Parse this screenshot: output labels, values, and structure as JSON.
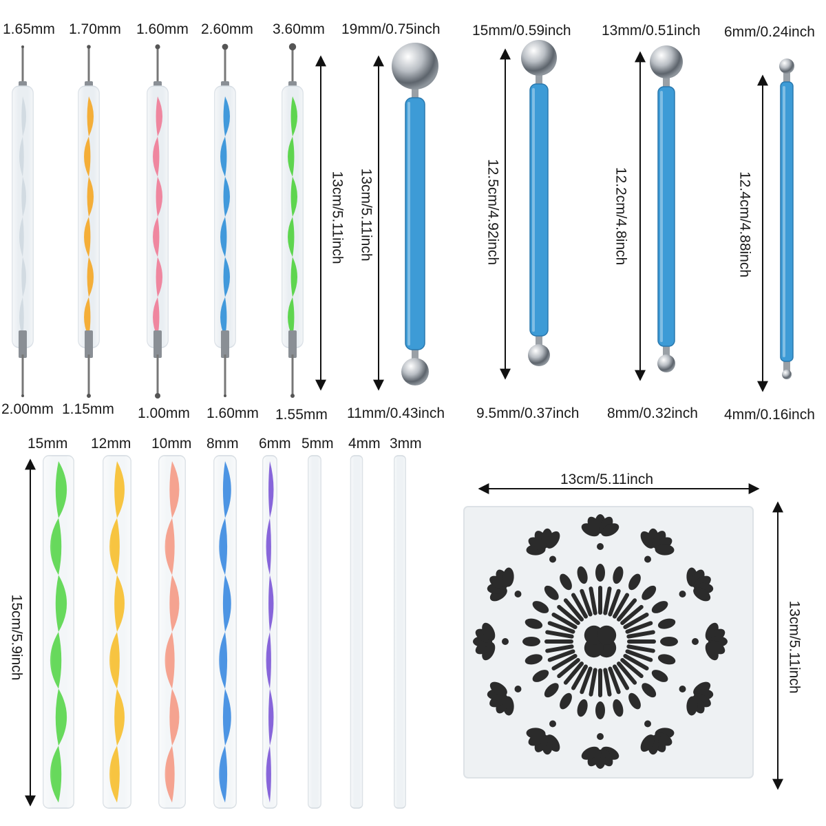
{
  "colors": {
    "clear": "#e9eef2",
    "orange": "#f5a623",
    "pink": "#f07a96",
    "blue": "#2f8fd8",
    "green": "#4fd13d",
    "handle_blue": "#3d9bd6",
    "rod_green": "#58d64a",
    "rod_yellow": "#f7bf2c",
    "rod_salmon": "#f59a84",
    "rod_blue": "#3a8ae0",
    "rod_purple": "#7b55d6",
    "stencil_pattern": "#2b2b2b"
  },
  "dotting_pens": {
    "top_tips": [
      "1.65mm",
      "1.70mm",
      "1.60mm",
      "2.60mm",
      "3.60mm"
    ],
    "bottom_tips": [
      "2.00mm",
      "1.15mm",
      "1.00mm",
      "1.60mm",
      "1.55mm"
    ],
    "length": "13cm/5.11inch"
  },
  "ball_tools": [
    {
      "top": "19mm/0.75inch",
      "length": "13cm/5.11inch",
      "bottom": "11mm/0.43inch"
    },
    {
      "top": "15mm/0.59inch",
      "length": "12.5cm/4.92inch",
      "bottom": "9.5mm/0.37inch"
    },
    {
      "top": "13mm/0.51inch",
      "length": "12.2cm/4.8inch",
      "bottom": "8mm/0.32inch"
    },
    {
      "top": "6mm/0.24inch",
      "length": "12.4cm/4.88inch",
      "bottom": "4mm/0.16inch"
    }
  ],
  "rods": {
    "diameters": [
      "15mm",
      "12mm",
      "10mm",
      "8mm",
      "6mm",
      "5mm",
      "4mm",
      "3mm"
    ],
    "length": "15cm/5.9inch"
  },
  "stencil": {
    "width": "13cm/5.11inch",
    "height": "13cm/5.11inch"
  }
}
